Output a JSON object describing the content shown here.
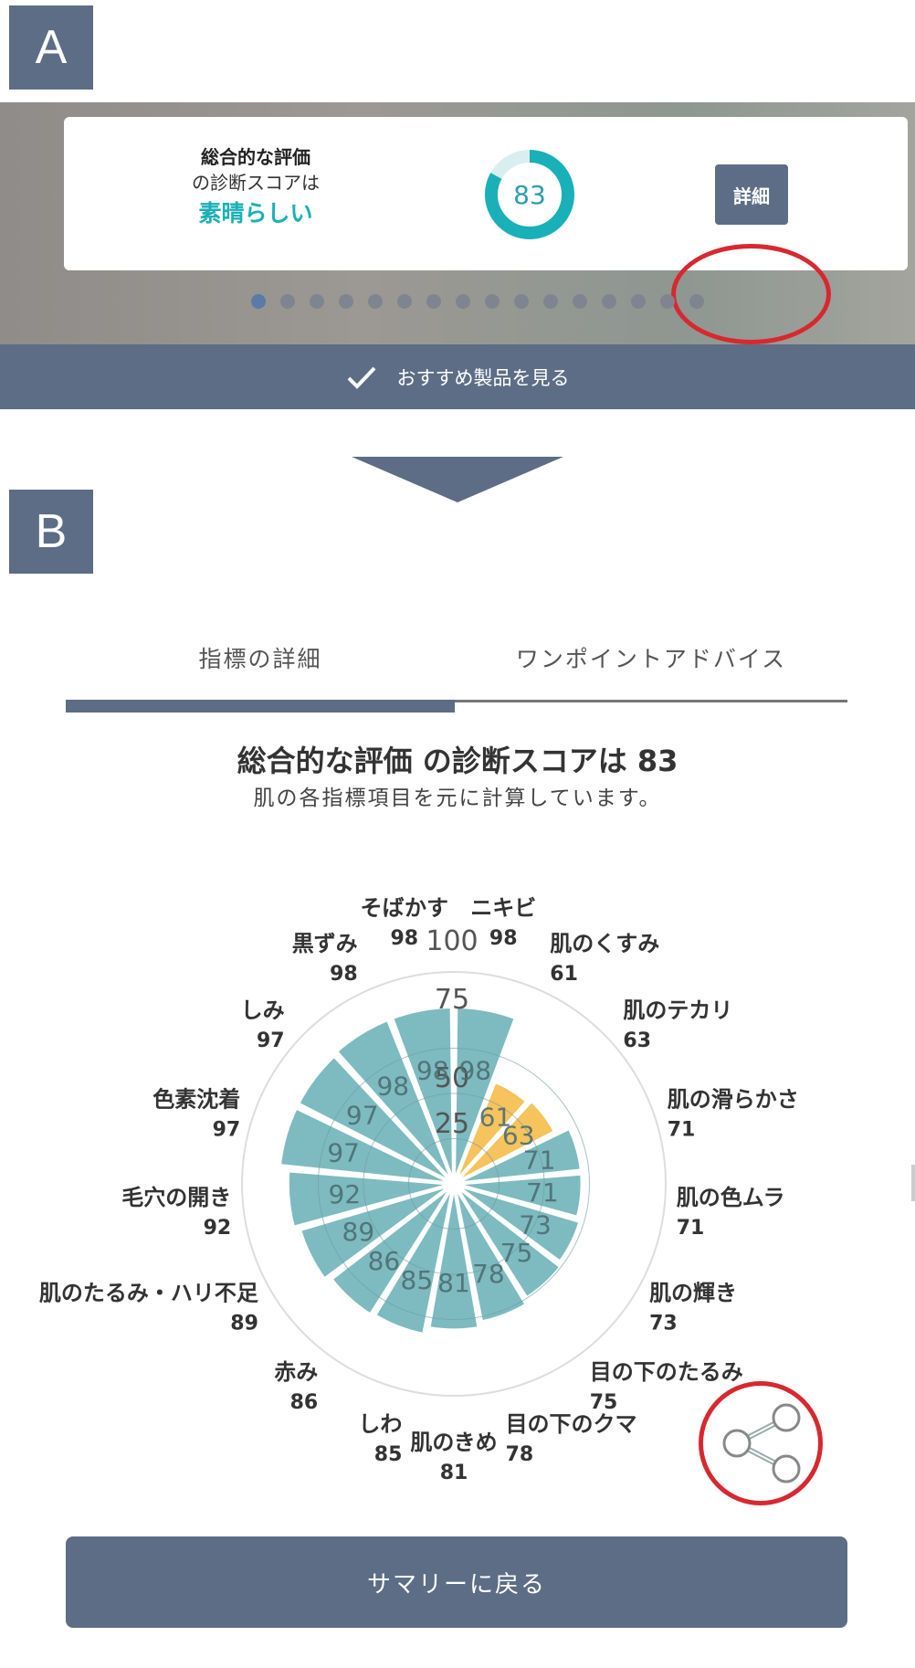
{
  "panel_a": {
    "label": "A",
    "card": {
      "line1": "総合的な評価",
      "line2": "の診断スコアは",
      "rating": "素晴らしい",
      "score": "83",
      "score_fraction": 0.83,
      "detail_button": "詳細"
    },
    "pagination": {
      "total": 16,
      "active": 0
    },
    "recommend_button": "おすすめ製品を見る",
    "colors": {
      "teal": "#1ab0b8",
      "slate": "#5d6d86",
      "highlight": "#d8282f"
    }
  },
  "panel_b": {
    "label": "B",
    "tabs": [
      {
        "label": "指標の詳細",
        "active": true
      },
      {
        "label": "ワンポイントアドバイス",
        "active": false
      }
    ],
    "title": "総合的な評価 の診断スコアは 83",
    "subtitle": "肌の各指標項目を元に計算しています。",
    "back_button": "サマリーに戻る",
    "share_icon": "share-icon"
  },
  "chart_data": {
    "type": "polar-bar",
    "radial_ticks": [
      "25",
      "50",
      "75",
      "100"
    ],
    "rmax": 100,
    "highlight_color": "#f6c35c",
    "base_color": "#7dbbc0",
    "categories": [
      {
        "label": "ニキビ",
        "value": 98,
        "highlight": false
      },
      {
        "label": "肌のくすみ",
        "value": 61,
        "highlight": true
      },
      {
        "label": "肌のテカリ",
        "value": 63,
        "highlight": true
      },
      {
        "label": "肌の滑らかさ",
        "value": 71,
        "highlight": false
      },
      {
        "label": "肌の色ムラ",
        "value": 71,
        "highlight": false
      },
      {
        "label": "肌の輝き",
        "value": 73,
        "highlight": false
      },
      {
        "label": "目の下のたるみ",
        "value": 75,
        "highlight": false
      },
      {
        "label": "目の下のクマ",
        "value": 78,
        "highlight": false
      },
      {
        "label": "肌のきめ",
        "value": 81,
        "highlight": false
      },
      {
        "label": "しわ",
        "value": 85,
        "highlight": false
      },
      {
        "label": "赤み",
        "value": 86,
        "highlight": false
      },
      {
        "label": "肌のたるみ・ハリ不足",
        "value": 89,
        "highlight": false
      },
      {
        "label": "毛穴の開き",
        "value": 92,
        "highlight": false
      },
      {
        "label": "色素沈着",
        "value": 97,
        "highlight": false
      },
      {
        "label": "しみ",
        "value": 97,
        "highlight": false
      },
      {
        "label": "黒ずみ",
        "value": 98,
        "highlight": false
      },
      {
        "label": "そばかす",
        "value": 98,
        "highlight": false
      }
    ]
  }
}
